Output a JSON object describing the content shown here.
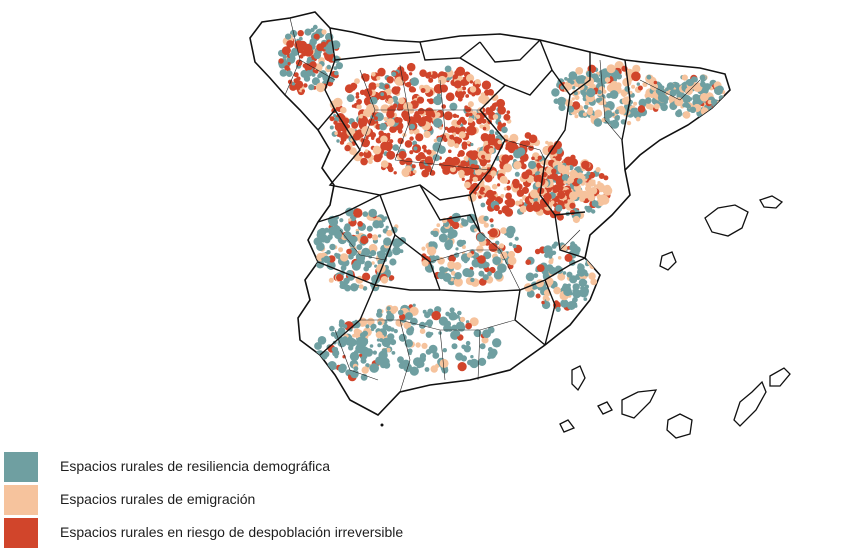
{
  "legend": {
    "items": [
      {
        "label": "Espacios rurales de resiliencia demográfica",
        "color": "#6f9fa1",
        "category": "resiliencia"
      },
      {
        "label": "Espacios rurales de emigración",
        "color": "#f6c39d",
        "category": "emigracion"
      },
      {
        "label": "Espacios rurales en riesgo de despoblación irreversible",
        "color": "#d1452b",
        "category": "riesgo"
      }
    ]
  },
  "map": {
    "colors": {
      "outline": "#111111",
      "background": "#ffffff"
    }
  }
}
